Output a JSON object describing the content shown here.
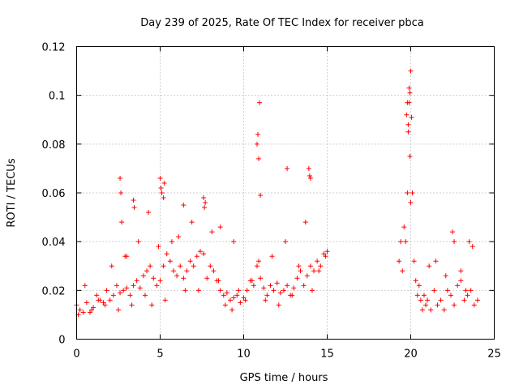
{
  "chart_data": {
    "type": "scatter",
    "title": "Day 239 of 2025, Rate Of TEC Index for receiver pbca",
    "xlabel": "GPS time / hours",
    "ylabel": "ROTI / TECUs",
    "xlim": [
      0,
      25
    ],
    "ylim": [
      0,
      0.12
    ],
    "xticks": [
      0,
      5,
      10,
      15,
      20,
      25
    ],
    "xtick_labels": [
      "0",
      "5",
      "10",
      "15",
      "20",
      "25"
    ],
    "yticks": [
      0,
      0.02,
      0.04,
      0.06,
      0.08,
      0.1,
      0.12
    ],
    "ytick_labels": [
      "0",
      "0.02",
      "0.04",
      "0.06",
      "0.08",
      "0.1",
      "0.12"
    ],
    "grid": true,
    "marker": "+",
    "color": "#ff0000",
    "series": [
      {
        "x": [
          0.0,
          0.2,
          0.4,
          0.6,
          0.8,
          1.0,
          1.2,
          1.4,
          1.6,
          1.8,
          2.0,
          2.2,
          2.4,
          2.6,
          2.8,
          3.0,
          3.2,
          3.4,
          3.6,
          3.8,
          4.0,
          4.2,
          4.4,
          4.6,
          4.8,
          5.0,
          5.2,
          5.4,
          5.6,
          5.8,
          6.0,
          6.2,
          6.4,
          6.6,
          6.8,
          7.0,
          7.2,
          7.4,
          7.6,
          7.8,
          8.0,
          8.2,
          8.4,
          8.6,
          8.8,
          9.0,
          9.2,
          9.4,
          9.6,
          9.8,
          10.0,
          10.2,
          10.4,
          10.6,
          10.8,
          11.0,
          11.2,
          11.4,
          11.6,
          11.8,
          12.0,
          12.2,
          12.4,
          12.6,
          12.8,
          13.0,
          13.2,
          13.4,
          13.6,
          13.8,
          14.0,
          14.2,
          14.4,
          14.6,
          14.8,
          15.0,
          0.1,
          0.5,
          0.9,
          1.3,
          1.7,
          2.1,
          2.5,
          2.9,
          3.3,
          3.7,
          4.1,
          4.5,
          4.9,
          5.3,
          5.7,
          6.1,
          6.5,
          6.9,
          7.3,
          7.7,
          8.1,
          8.5,
          8.9,
          9.3,
          9.7,
          10.1,
          10.5,
          10.9,
          11.3,
          11.7,
          12.1,
          12.5,
          12.9,
          13.3,
          13.7,
          14.1,
          14.5,
          14.9,
          2.6,
          2.65,
          2.7,
          3.4,
          3.45,
          5.0,
          5.05,
          5.1,
          5.2,
          5.25,
          7.6,
          7.65,
          10.8,
          10.85,
          10.9,
          10.95,
          11.0,
          13.9,
          13.95,
          14.0,
          12.6,
          9.4,
          8.6,
          6.4,
          4.3,
          3.0,
          19.3,
          19.4,
          19.5,
          19.6,
          19.7,
          19.8,
          19.85,
          19.9,
          19.95,
          20.0,
          20.05,
          20.1,
          20.2,
          20.3,
          20.4,
          20.5,
          20.6,
          20.7,
          20.8,
          20.9,
          21.0,
          21.2,
          21.4,
          21.6,
          21.8,
          22.0,
          22.2,
          22.4,
          22.6,
          22.8,
          23.0,
          23.2,
          23.4,
          23.6,
          23.8,
          24.0,
          19.75,
          19.8,
          19.85,
          19.9,
          19.95,
          20.0,
          21.1,
          21.5,
          22.1,
          22.5,
          22.6,
          23.0,
          23.3,
          23.5,
          23.7
        ],
        "y": [
          0.014,
          0.012,
          0.011,
          0.015,
          0.011,
          0.013,
          0.018,
          0.016,
          0.015,
          0.02,
          0.016,
          0.018,
          0.022,
          0.019,
          0.02,
          0.021,
          0.018,
          0.022,
          0.024,
          0.021,
          0.026,
          0.028,
          0.03,
          0.025,
          0.022,
          0.024,
          0.03,
          0.035,
          0.032,
          0.028,
          0.026,
          0.03,
          0.025,
          0.028,
          0.032,
          0.03,
          0.034,
          0.036,
          0.035,
          0.025,
          0.03,
          0.028,
          0.024,
          0.02,
          0.018,
          0.019,
          0.016,
          0.017,
          0.018,
          0.015,
          0.017,
          0.02,
          0.024,
          0.022,
          0.03,
          0.025,
          0.021,
          0.018,
          0.022,
          0.02,
          0.023,
          0.019,
          0.02,
          0.022,
          0.018,
          0.021,
          0.025,
          0.028,
          0.022,
          0.026,
          0.03,
          0.028,
          0.032,
          0.03,
          0.035,
          0.036,
          0.01,
          0.022,
          0.012,
          0.016,
          0.014,
          0.03,
          0.012,
          0.034,
          0.014,
          0.04,
          0.018,
          0.014,
          0.038,
          0.016,
          0.04,
          0.042,
          0.02,
          0.048,
          0.02,
          0.056,
          0.044,
          0.024,
          0.014,
          0.012,
          0.02,
          0.016,
          0.024,
          0.032,
          0.016,
          0.034,
          0.014,
          0.04,
          0.018,
          0.03,
          0.048,
          0.02,
          0.028,
          0.034,
          0.066,
          0.06,
          0.048,
          0.057,
          0.054,
          0.066,
          0.062,
          0.06,
          0.058,
          0.064,
          0.058,
          0.054,
          0.08,
          0.084,
          0.074,
          0.097,
          0.059,
          0.07,
          0.067,
          0.066,
          0.07,
          0.04,
          0.046,
          0.055,
          0.052,
          0.034,
          0.032,
          0.04,
          0.028,
          0.046,
          0.04,
          0.06,
          0.085,
          0.097,
          0.101,
          0.11,
          0.091,
          0.06,
          0.032,
          0.024,
          0.018,
          0.022,
          0.016,
          0.012,
          0.018,
          0.014,
          0.016,
          0.012,
          0.02,
          0.014,
          0.016,
          0.012,
          0.02,
          0.018,
          0.014,
          0.022,
          0.024,
          0.016,
          0.018,
          0.02,
          0.014,
          0.016,
          0.092,
          0.097,
          0.088,
          0.103,
          0.075,
          0.056,
          0.03,
          0.032,
          0.026,
          0.044,
          0.04,
          0.028,
          0.02,
          0.04,
          0.038
        ]
      }
    ]
  }
}
